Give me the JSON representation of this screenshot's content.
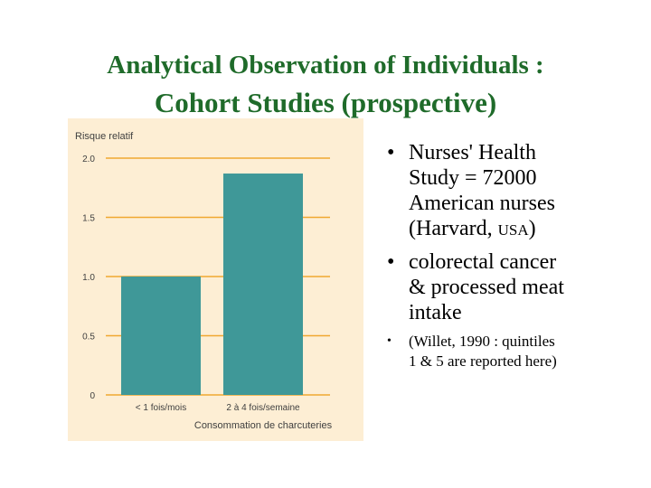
{
  "title": {
    "line1_pre": "Analytical Observation of ",
    "line1_bold": "Individuals :",
    "line2_bold": "Cohort",
    "line2_post": " Studies (prospective)"
  },
  "chart_data": {
    "type": "bar",
    "ylabel": "Risque relatif",
    "xlabel": "Consommation de charcuteries",
    "categories": [
      "< 1 fois/mois",
      "2 à 4 fois/semaine"
    ],
    "values": [
      1.0,
      1.87
    ],
    "ylim": [
      0,
      2.0
    ],
    "yticks": [
      "0",
      "0.5",
      "1.0",
      "1.5",
      "2.0"
    ],
    "ytick_values": [
      0,
      0.5,
      1.0,
      1.5,
      2.0
    ],
    "grid": true,
    "colors": {
      "bar": "#3f9898",
      "grid": "#f0a830",
      "background": "#fdeed4"
    }
  },
  "bullets": {
    "b1_line1": "Nurses' Health",
    "b1_line2": "Study = 72000",
    "b1_line3": "American nurses",
    "b1_line4_pre": "(Harvard, ",
    "b1_line4_sc": "USA",
    "b1_line4_post": ")",
    "b2_line1": "colorectal cancer",
    "b2_line2": "& processed meat",
    "b2_line3": "intake",
    "b3_line1": "(Willet, 1990 : quintiles",
    "b3_line2": "1 & 5 are reported here)",
    "bullet_char": "•"
  }
}
